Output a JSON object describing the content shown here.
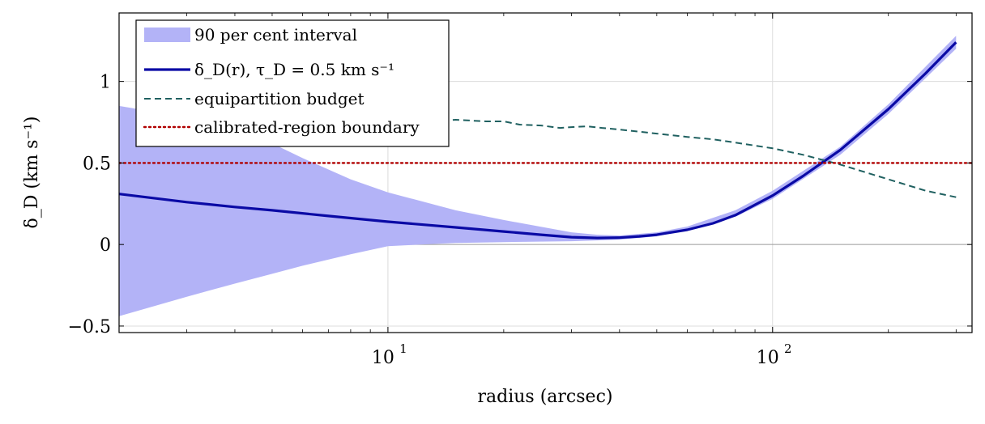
{
  "chart_data": {
    "type": "line",
    "title": "",
    "xlabel": "radius (arcsec)",
    "ylabel": "δ_D (km s⁻¹)",
    "xscale": "log",
    "xlim": [
      2,
      330
    ],
    "ylim": [
      -0.54,
      1.42
    ],
    "xticks": [
      {
        "value": 10,
        "base": "10",
        "exp": "1"
      },
      {
        "value": 100,
        "base": "10",
        "exp": "2"
      }
    ],
    "yticks": [
      {
        "value": -0.5,
        "label": "−0.5"
      },
      {
        "value": 0,
        "label": "0"
      },
      {
        "value": 0.5,
        "label": "0.5"
      },
      {
        "value": 1,
        "label": "1"
      }
    ],
    "grid": true,
    "legend_position": "top-left",
    "series": [
      {
        "name": "90 per cent interval",
        "kind": "band",
        "color": "#b3b3f7",
        "x": [
          2,
          3,
          4,
          5,
          6,
          8,
          10,
          15,
          20,
          30,
          35,
          40,
          50,
          60,
          80,
          100,
          150,
          200,
          300
        ],
        "lower": [
          -0.44,
          -0.32,
          -0.24,
          -0.18,
          -0.13,
          -0.06,
          -0.01,
          0.01,
          0.015,
          0.02,
          0.025,
          0.03,
          0.05,
          0.09,
          0.17,
          0.28,
          0.55,
          0.8,
          1.2
        ],
        "upper": [
          0.85,
          0.78,
          0.7,
          0.62,
          0.53,
          0.4,
          0.32,
          0.21,
          0.15,
          0.075,
          0.06,
          0.055,
          0.075,
          0.11,
          0.21,
          0.33,
          0.6,
          0.86,
          1.28
        ]
      },
      {
        "name": "δ_D(r), τ_D = 0.5 km s⁻¹",
        "kind": "line",
        "color": "#0a0aa5",
        "x": [
          2,
          3,
          4,
          5,
          7,
          10,
          15,
          20,
          25,
          30,
          35,
          40,
          45,
          50,
          60,
          70,
          80,
          100,
          120,
          150,
          200,
          250,
          300
        ],
        "y": [
          0.31,
          0.26,
          0.23,
          0.21,
          0.175,
          0.14,
          0.105,
          0.08,
          0.06,
          0.045,
          0.04,
          0.042,
          0.05,
          0.06,
          0.09,
          0.13,
          0.18,
          0.3,
          0.42,
          0.58,
          0.83,
          1.05,
          1.24
        ]
      },
      {
        "name": "equipartition budget",
        "kind": "dashed",
        "color": "#1f6060",
        "x": [
          13,
          15,
          18,
          20,
          22,
          25,
          28,
          30,
          33,
          36,
          40,
          50,
          60,
          70,
          80,
          100,
          120,
          150,
          200,
          250,
          300
        ],
        "y": [
          0.755,
          0.765,
          0.755,
          0.755,
          0.735,
          0.73,
          0.715,
          0.72,
          0.725,
          0.715,
          0.705,
          0.68,
          0.66,
          0.645,
          0.625,
          0.59,
          0.55,
          0.49,
          0.4,
          0.33,
          0.29
        ]
      },
      {
        "name": "calibrated-region boundary",
        "kind": "hline",
        "color": "#b00000",
        "y": 0.5
      }
    ]
  }
}
